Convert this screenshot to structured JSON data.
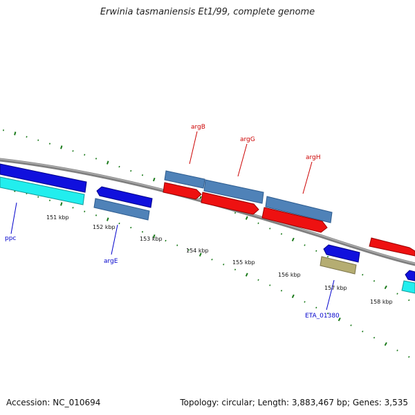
{
  "title": "Erwinia tasmaniensis Et1/99, complete genome",
  "footer": {
    "accession": "Accession: NC_010694",
    "summary": "Topology: circular; Length: 3,883,467 bp; Genes: 3,535"
  },
  "scale_labels": [
    "151 kbp",
    "152 kbp",
    "153 kbp",
    "154 kbp",
    "155 kbp",
    "156 kbp",
    "157 kbp",
    "158 kbp"
  ],
  "gene_labels": {
    "argB": "argB",
    "argG": "argG",
    "argH": "argH",
    "ppc": "ppc",
    "argE": "argE",
    "eta": "ETA_01380"
  },
  "colors": {
    "backbone": "#808080",
    "tick_green": "#1a7a1a",
    "cds_blue": "#1010dd",
    "cds_cyan": "#22eeee",
    "cds_steel": "#4f82b8",
    "cds_red": "#ee1111",
    "cds_olive": "#b5ad72",
    "label_blue": "#0000cc",
    "label_red": "#cc0000"
  }
}
